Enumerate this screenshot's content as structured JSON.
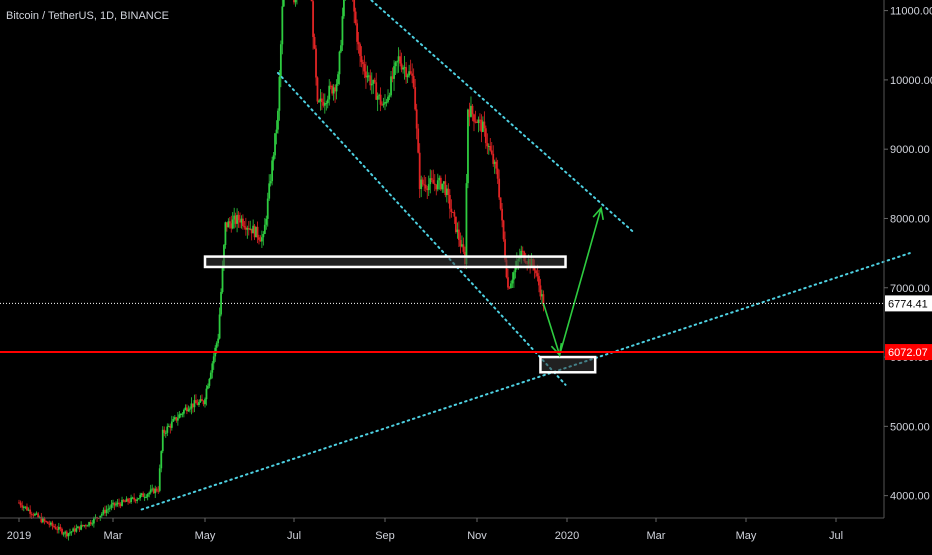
{
  "title": "Bitcoin / TetherUS, 1D, BINANCE",
  "colors": {
    "background": "#000000",
    "up": "#2ecc40",
    "down": "#e02424",
    "axis_text": "#d1d4dc",
    "trendline": "#4dd0e1",
    "support_line": "#ff0000",
    "arrow": "#2ecc40",
    "box_stroke": "#ffffff"
  },
  "chart_data": {
    "type": "candlestick",
    "title": "Bitcoin / TetherUS, 1D, BINANCE",
    "x_ticks": [
      "2019",
      "Mar",
      "May",
      "Jul",
      "Sep",
      "Nov",
      "2020",
      "Mar",
      "May",
      "Jul"
    ],
    "x_tick_dates": [
      "2019-01-01",
      "2019-03-01",
      "2019-05-01",
      "2019-07-01",
      "2019-09-01",
      "2019-11-01",
      "2020-01-01",
      "2020-03-01",
      "2020-05-01",
      "2020-07-01"
    ],
    "y_ticks": [
      4000,
      5000,
      6000,
      7000,
      8000,
      9000,
      10000,
      11000
    ],
    "y_tick_labels": [
      "4000.00",
      "5000.00",
      "6000.00",
      "7000.00",
      "8000.00",
      "9000.00",
      "10000.00",
      "11000.00"
    ],
    "x_range": [
      "2018-12-15",
      "2020-08-15"
    ],
    "y_range": [
      3800,
      11200
    ],
    "price_markers": [
      {
        "value": 6774.41,
        "label": "6774.41",
        "style": "dotted-white"
      },
      {
        "value": 6072.07,
        "label": "6072.07",
        "style": "solid-red"
      }
    ],
    "price_path": [
      [
        "2019-01-01",
        3900
      ],
      [
        "2019-01-15",
        3650
      ],
      [
        "2019-01-31",
        3450
      ],
      [
        "2019-02-15",
        3620
      ],
      [
        "2019-02-28",
        3850
      ],
      [
        "2019-03-15",
        3950
      ],
      [
        "2019-03-31",
        4100
      ],
      [
        "2019-04-03",
        4900
      ],
      [
        "2019-04-20",
        5300
      ],
      [
        "2019-04-30",
        5350
      ],
      [
        "2019-05-10",
        6300
      ],
      [
        "2019-05-15",
        7900
      ],
      [
        "2019-05-25",
        8000
      ],
      [
        "2019-06-10",
        7700
      ],
      [
        "2019-06-20",
        9500
      ],
      [
        "2019-06-26",
        12500
      ],
      [
        "2019-07-01",
        11200
      ],
      [
        "2019-07-10",
        12200
      ],
      [
        "2019-07-17",
        9600
      ],
      [
        "2019-07-31",
        10000
      ],
      [
        "2019-08-06",
        11800
      ],
      [
        "2019-08-15",
        10300
      ],
      [
        "2019-08-31",
        9600
      ],
      [
        "2019-09-10",
        10300
      ],
      [
        "2019-09-20",
        10000
      ],
      [
        "2019-09-24",
        8500
      ],
      [
        "2019-10-10",
        8500
      ],
      [
        "2019-10-24",
        7400
      ],
      [
        "2019-10-26",
        9600
      ],
      [
        "2019-11-05",
        9300
      ],
      [
        "2019-11-15",
        8600
      ],
      [
        "2019-11-22",
        7000
      ],
      [
        "2019-12-01",
        7500
      ],
      [
        "2019-12-10",
        7300
      ],
      [
        "2019-12-16",
        6774
      ]
    ],
    "drawings": {
      "trendlines": [
        {
          "start": [
            "2019-03-20",
            3800
          ],
          "end": [
            "2020-08-20",
            7500
          ]
        },
        {
          "start": [
            "2019-06-20",
            10100
          ],
          "end": [
            "2019-12-31",
            5600
          ]
        },
        {
          "start": [
            "2019-08-20",
            11200
          ],
          "end": [
            "2020-02-15",
            7800
          ]
        }
      ],
      "zones": [
        {
          "start": "2019-05-01",
          "end": "2019-12-31",
          "low": 7300,
          "high": 7450
        },
        {
          "start": "2019-12-14",
          "end": "2020-01-20",
          "low": 5780,
          "high": 6000
        }
      ],
      "projection": [
        [
          "2019-12-16",
          6774
        ],
        [
          "2019-12-27",
          6030
        ],
        [
          "2020-01-24",
          8150
        ]
      ]
    }
  }
}
